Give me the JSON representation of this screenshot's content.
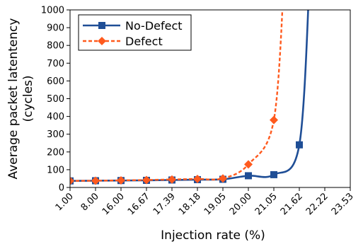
{
  "chart_data": {
    "type": "line",
    "categories": [
      "1.00",
      "8.00",
      "16.00",
      "16.67",
      "17.39",
      "18.18",
      "19.05",
      "20.00",
      "21.05",
      "21.62",
      "22.22",
      "23.53"
    ],
    "series": [
      {
        "name": "No-Defect",
        "color": "#1f4e96",
        "marker": "square",
        "line": "solid",
        "values": [
          37,
          38,
          39,
          40,
          42,
          44,
          46,
          66,
          72,
          240,
          null,
          null
        ]
      },
      {
        "name": "Defect",
        "color": "#ff5a1e",
        "marker": "diamond",
        "line": "dashed",
        "values": [
          37,
          38,
          40,
          42,
          45,
          48,
          51,
          130,
          380,
          null,
          null,
          null
        ]
      }
    ],
    "xlabel": "Injection rate (%)",
    "ylabel_lines": [
      "Average packet latentency",
      "(cycles)"
    ],
    "ylim": [
      0,
      1000
    ],
    "yticks": [
      0,
      100,
      200,
      300,
      400,
      500,
      600,
      700,
      800,
      900,
      1000
    ],
    "grid": false,
    "legend_position": "top-left"
  }
}
